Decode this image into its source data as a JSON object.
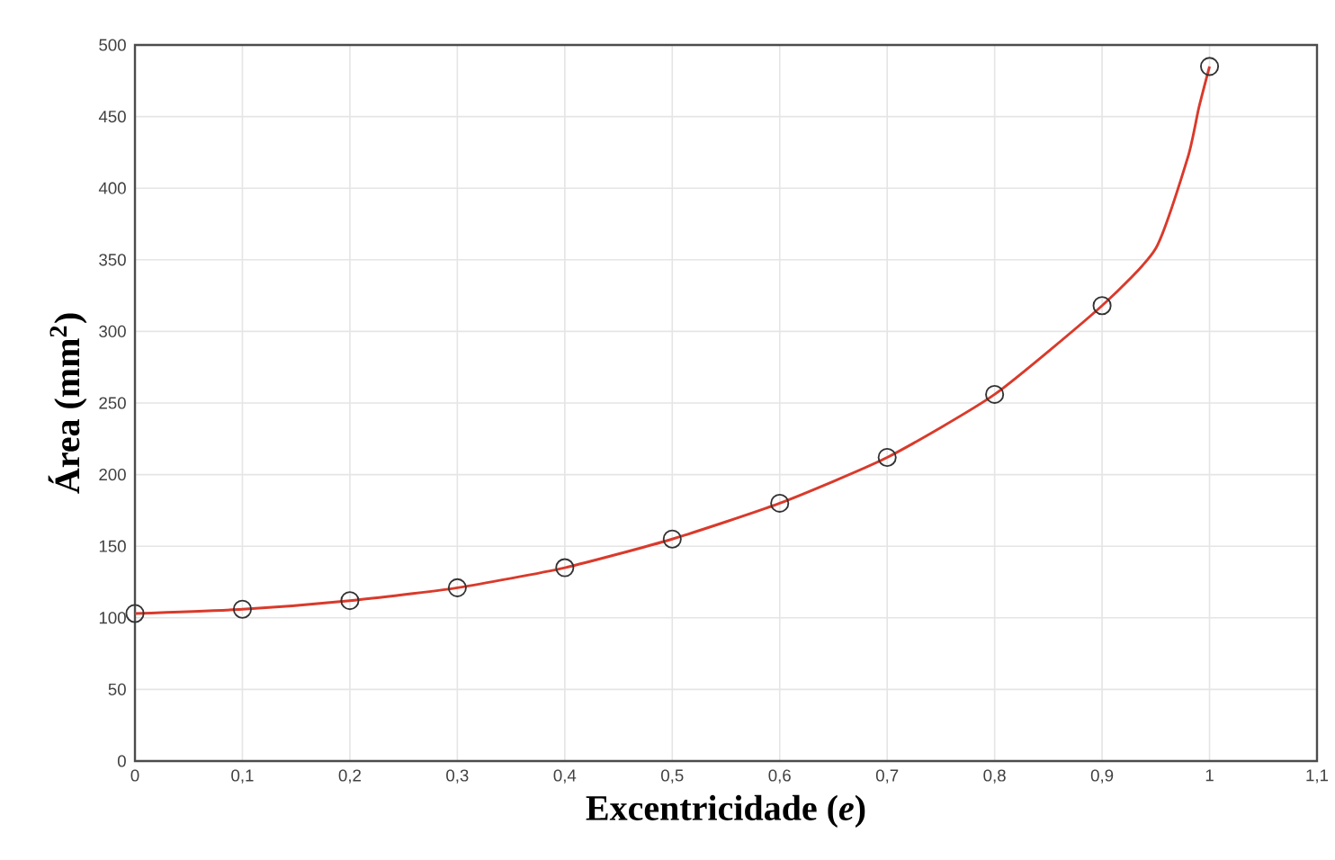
{
  "chart_data": {
    "type": "line",
    "xlabel": "Excentricidade (*e*)",
    "ylabel": "Área (mm$^{2}$)",
    "xlim": [
      0,
      1.1
    ],
    "xticks": [
      0,
      {
        "value": 0.1,
        "label": "0,1"
      },
      {
        "value": 0.2,
        "label": "0,2"
      },
      {
        "value": 0.3,
        "label": "0,3"
      },
      {
        "value": 0.4,
        "label": "0,4"
      },
      {
        "value": 0.5,
        "label": "0,5"
      },
      {
        "value": 0.6,
        "label": "0,6"
      },
      {
        "value": 0.7,
        "label": "0,7"
      },
      {
        "value": 0.8,
        "label": "0,8"
      },
      {
        "value": 0.9,
        "label": "0,9"
      },
      1,
      {
        "value": 1.1,
        "label": "1,1"
      }
    ],
    "ylim": [
      0,
      500
    ],
    "yticks": [
      0,
      50,
      100,
      150,
      200,
      250,
      300,
      350,
      400,
      450,
      500
    ],
    "grid": true,
    "series": [
      {
        "color": "#d93a2b",
        "marker": "none",
        "line_style": "solid",
        "x": [
          0,
          0.1,
          0.2,
          0.3,
          0.4,
          0.5,
          0.6,
          0.7,
          0.8,
          0.9,
          0.95,
          0.98,
          0.99,
          1
        ],
        "values": [
          103,
          106,
          112,
          121,
          135,
          155,
          180,
          212,
          256,
          318,
          358,
          422,
          456,
          485
        ]
      },
      {
        "type": "scatter",
        "color": "#333333",
        "marker": "circle",
        "x": [
          0,
          0.1,
          0.2,
          0.3,
          0.4,
          0.5,
          0.6,
          0.7,
          0.8,
          0.9,
          1
        ],
        "values": [
          103,
          106,
          112,
          121,
          135,
          155,
          180,
          212,
          256,
          318,
          485
        ]
      }
    ]
  }
}
